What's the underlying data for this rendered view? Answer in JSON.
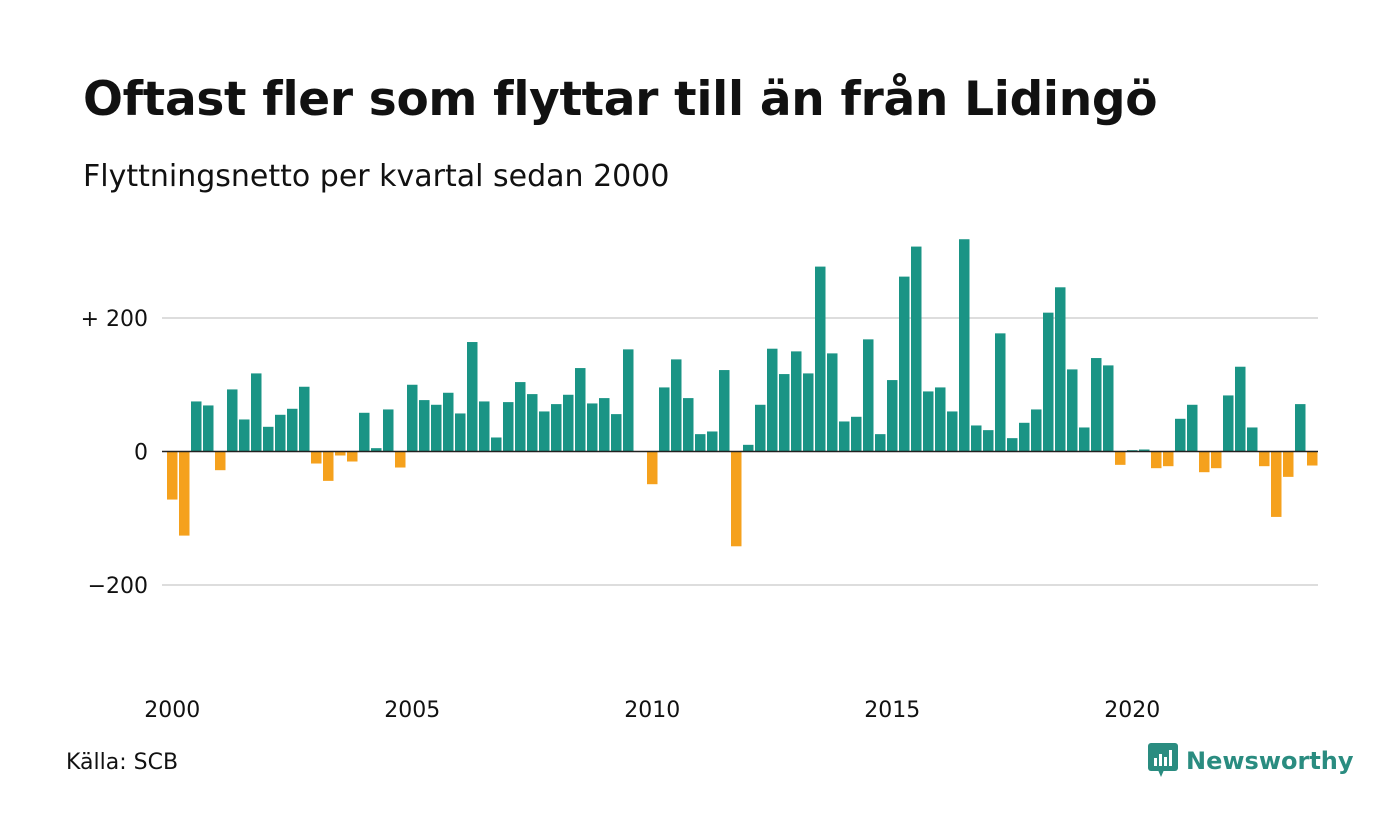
{
  "title": "Oftast fler som flyttar till än från Lidingö",
  "subtitle": "Flyttningsnetto per kvartal sedan 2000",
  "source": "Källa: SCB",
  "logo_text": "Newsworthy",
  "colors": {
    "positive": "#1a9485",
    "negative": "#f5a11d",
    "grid": "#dddddd",
    "baseline": "#222222",
    "logo": "#2a8c80"
  },
  "chart_data": {
    "type": "bar",
    "title": "Oftast fler som flyttar till än från Lidingö",
    "subtitle": "Flyttningsnetto per kvartal sedan 2000",
    "xlabel": "",
    "ylabel": "",
    "ylim": [
      -340,
      320
    ],
    "yticks": [
      {
        "value": 200,
        "label": "+ 200"
      },
      {
        "value": 0,
        "label": "0"
      },
      {
        "value": -200,
        "label": "−200"
      }
    ],
    "xticks": [
      {
        "quarter_index": 0,
        "label": "2000"
      },
      {
        "quarter_index": 20,
        "label": "2005"
      },
      {
        "quarter_index": 40,
        "label": "2010"
      },
      {
        "quarter_index": 60,
        "label": "2015"
      },
      {
        "quarter_index": 80,
        "label": "2020"
      }
    ],
    "grid": true,
    "start": "2000 Q1",
    "frequency": "quarterly",
    "values": [
      -72,
      -126,
      75,
      69,
      -28,
      93,
      48,
      117,
      37,
      55,
      64,
      97,
      -18,
      -44,
      -6,
      -15,
      58,
      5,
      63,
      -24,
      100,
      77,
      70,
      88,
      57,
      164,
      75,
      21,
      74,
      104,
      86,
      60,
      71,
      85,
      125,
      72,
      80,
      56,
      153,
      0,
      -49,
      96,
      138,
      80,
      26,
      30,
      122,
      -142,
      10,
      70,
      154,
      116,
      150,
      117,
      277,
      147,
      45,
      52,
      168,
      26,
      107,
      262,
      307,
      90,
      96,
      60,
      318,
      39,
      32,
      177,
      20,
      43,
      63,
      208,
      246,
      123,
      36,
      140,
      129,
      -20,
      2,
      3,
      -25,
      -22,
      49,
      70,
      -31,
      -25,
      84,
      127,
      36,
      -22,
      -98,
      -38,
      71,
      -21
    ]
  }
}
